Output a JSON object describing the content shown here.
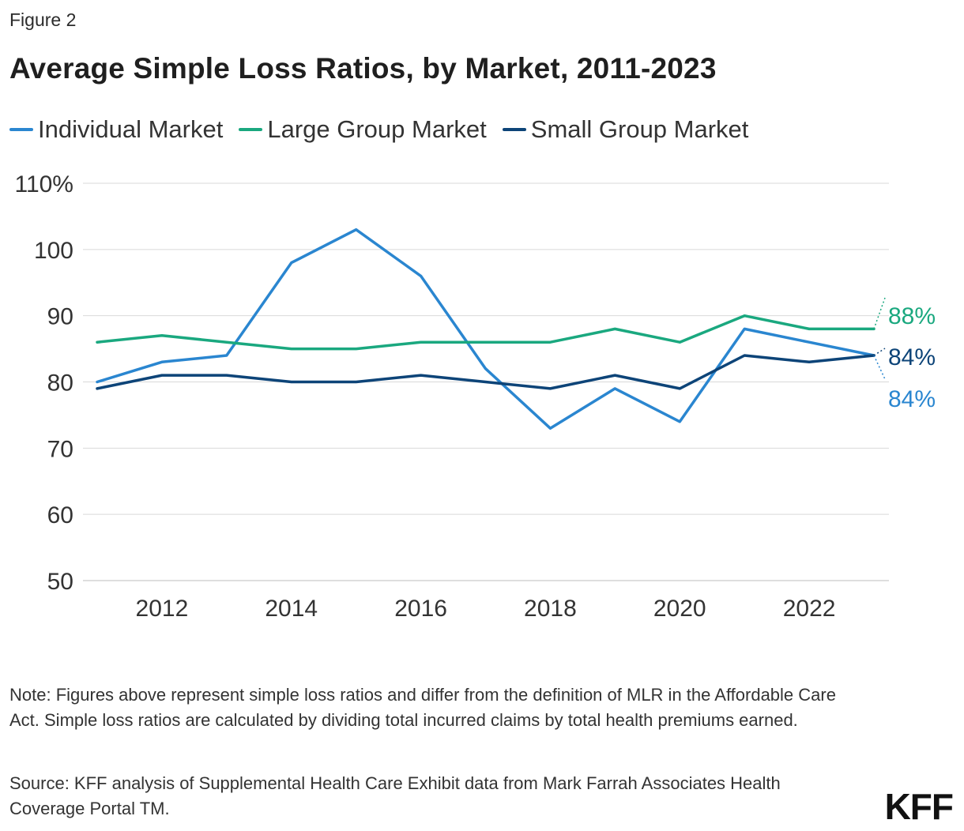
{
  "figure_label": "Figure 2",
  "title": "Average Simple Loss Ratios, by Market, 2011-2023",
  "note": "Note: Figures above represent simple loss ratios and differ from the definition of MLR in the Affordable Care Act. Simple loss ratios are calculated by dividing total incurred claims by total health premiums earned.",
  "source": "Source: KFF analysis of Supplemental Health Care Exhibit data from Mark Farrah Associates Health Coverage Portal TM.",
  "logo": "KFF",
  "chart_data": {
    "type": "line",
    "x": [
      2011,
      2012,
      2013,
      2014,
      2015,
      2016,
      2017,
      2018,
      2019,
      2020,
      2021,
      2022,
      2023
    ],
    "series": [
      {
        "name": "Individual Market",
        "color": "#2a86d0",
        "values": [
          80,
          83,
          84,
          98,
          103,
          96,
          82,
          73,
          79,
          74,
          88,
          86,
          84
        ],
        "end_label": "84%"
      },
      {
        "name": "Large Group Market",
        "color": "#1aa87f",
        "values": [
          86,
          87,
          86,
          85,
          85,
          86,
          86,
          86,
          88,
          86,
          90,
          88,
          88
        ],
        "end_label": "88%"
      },
      {
        "name": "Small Group Market",
        "color": "#0d4478",
        "values": [
          79,
          81,
          81,
          80,
          80,
          81,
          80,
          79,
          81,
          79,
          84,
          83,
          84
        ],
        "end_label": "84%"
      }
    ],
    "ylim": [
      50,
      110
    ],
    "yticks": [
      50,
      60,
      70,
      80,
      90,
      100,
      110
    ],
    "ytick_labels": [
      "50",
      "60",
      "70",
      "80",
      "90",
      "100",
      "110%"
    ],
    "xlim": [
      2011,
      2023
    ],
    "xticks": [
      2012,
      2014,
      2016,
      2018,
      2020,
      2022
    ],
    "xtick_labels": [
      "2012",
      "2014",
      "2016",
      "2018",
      "2020",
      "2022"
    ],
    "grid": true,
    "legend_position": "top-left"
  }
}
